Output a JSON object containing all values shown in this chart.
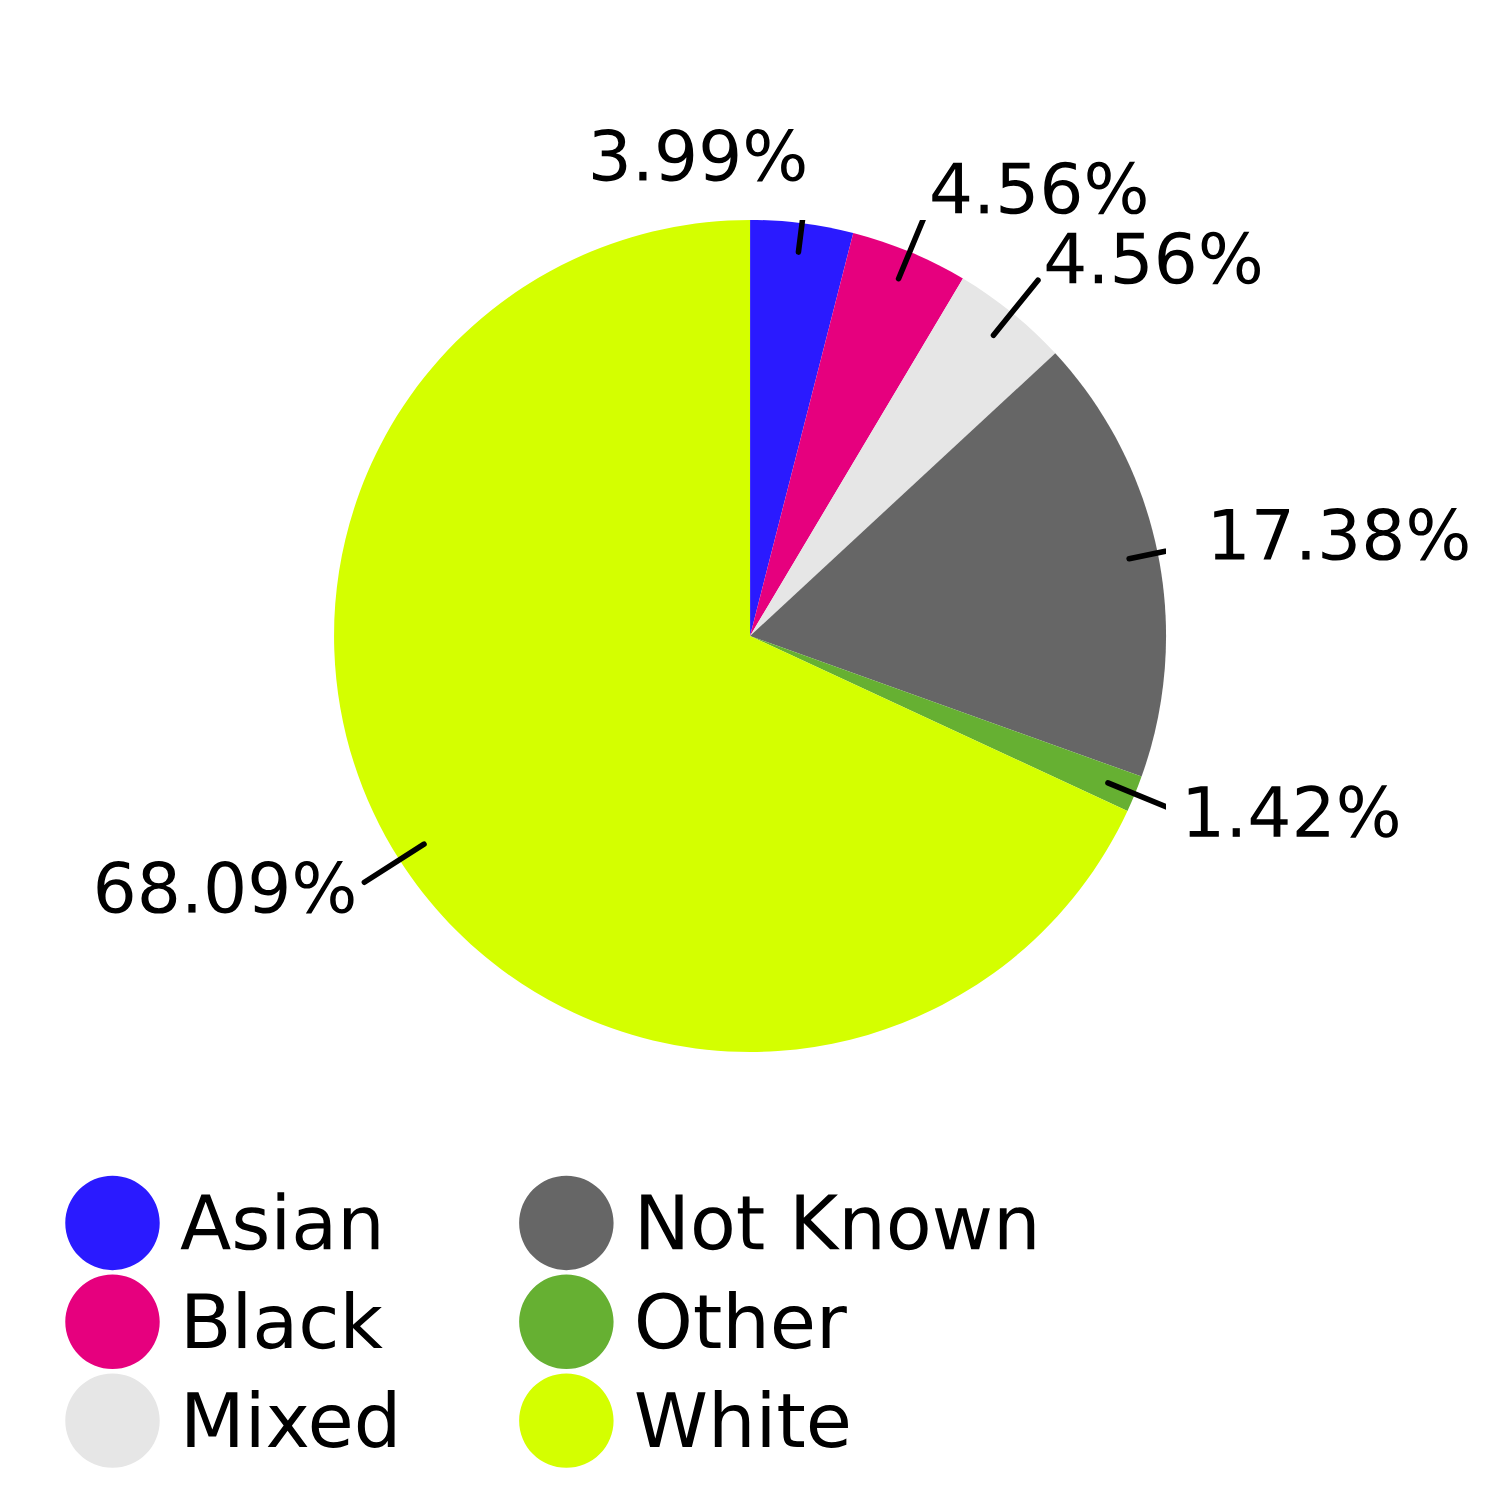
{
  "chart_data": {
    "type": "pie",
    "categories": [
      "Asian",
      "Black",
      "Mixed",
      "Not Known",
      "Other",
      "White"
    ],
    "values": [
      3.99,
      4.56,
      4.56,
      17.38,
      1.42,
      68.09
    ],
    "colors": [
      "#2a1aff",
      "#e6007e",
      "#e6e6e6",
      "#666666",
      "#66b032",
      "#d4ff00"
    ],
    "value_labels": [
      "3.99%",
      "4.56%",
      "4.56%",
      "17.38%",
      "1.42%",
      "68.09%"
    ],
    "legend": "bottom"
  }
}
